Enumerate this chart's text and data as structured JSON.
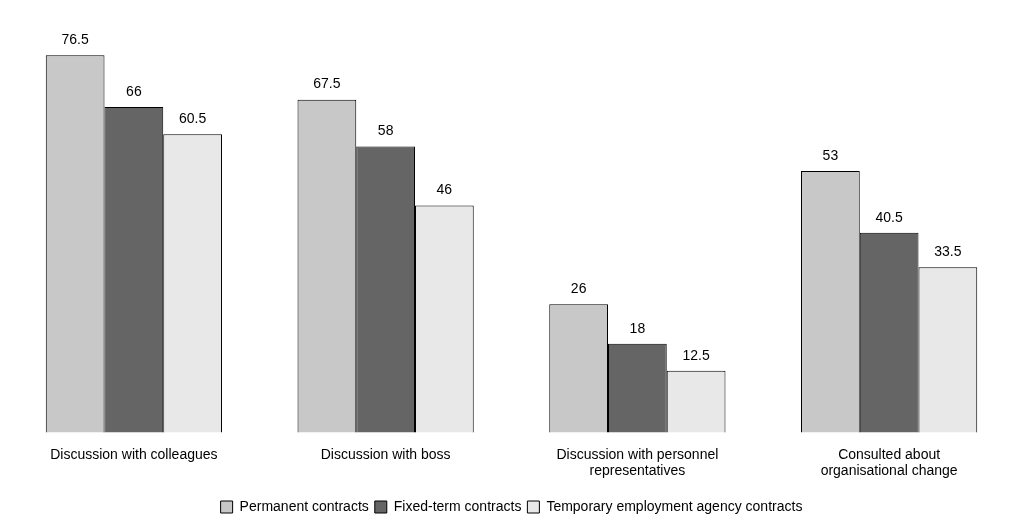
{
  "chart_data": {
    "type": "bar",
    "categories": [
      "Discussion with colleagues",
      "Discussion with boss",
      "Discussion with personnel representatives",
      "Consulted about organisational change"
    ],
    "series": [
      {
        "name": "Permanent contracts",
        "color": "#c8c8c8",
        "values": [
          76.5,
          67.5,
          26,
          53
        ]
      },
      {
        "name": "Fixed-term contracts",
        "color": "#656565",
        "values": [
          66,
          58,
          18,
          40.5
        ]
      },
      {
        "name": "Temporary employment agency contracts",
        "color": "#e8e8e8",
        "values": [
          60.5,
          46,
          12.5,
          33.5
        ]
      }
    ],
    "data_labels": true,
    "legend": "bottom",
    "grid": false
  }
}
